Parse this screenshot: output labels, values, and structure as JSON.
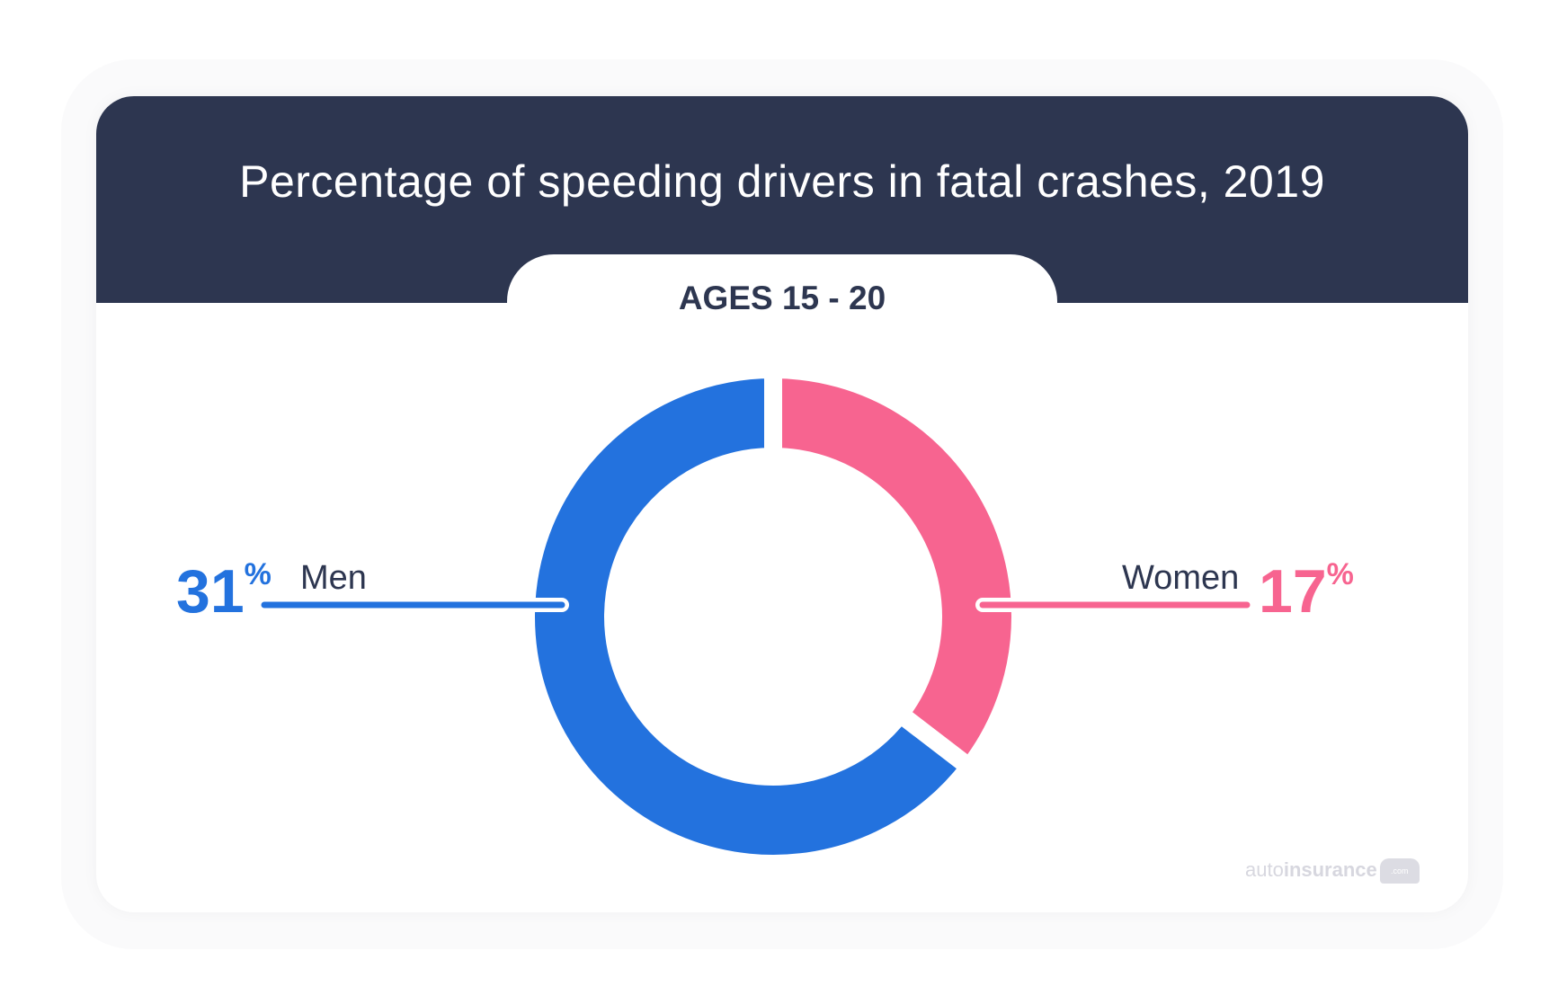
{
  "chart_data": {
    "type": "pie",
    "title": "Percentage of speeding drivers in fatal crashes, 2019",
    "subtitle": "AGES 15 - 20",
    "categories": [
      "Women",
      "Men"
    ],
    "values": [
      17,
      31
    ],
    "value_labels": [
      "17",
      "31"
    ],
    "unit": "%",
    "colors": [
      "#f76490",
      "#2372de"
    ],
    "donut": true
  },
  "branding": {
    "logo_light": "auto",
    "logo_bold": "insurance",
    "logo_suffix": ".com"
  }
}
